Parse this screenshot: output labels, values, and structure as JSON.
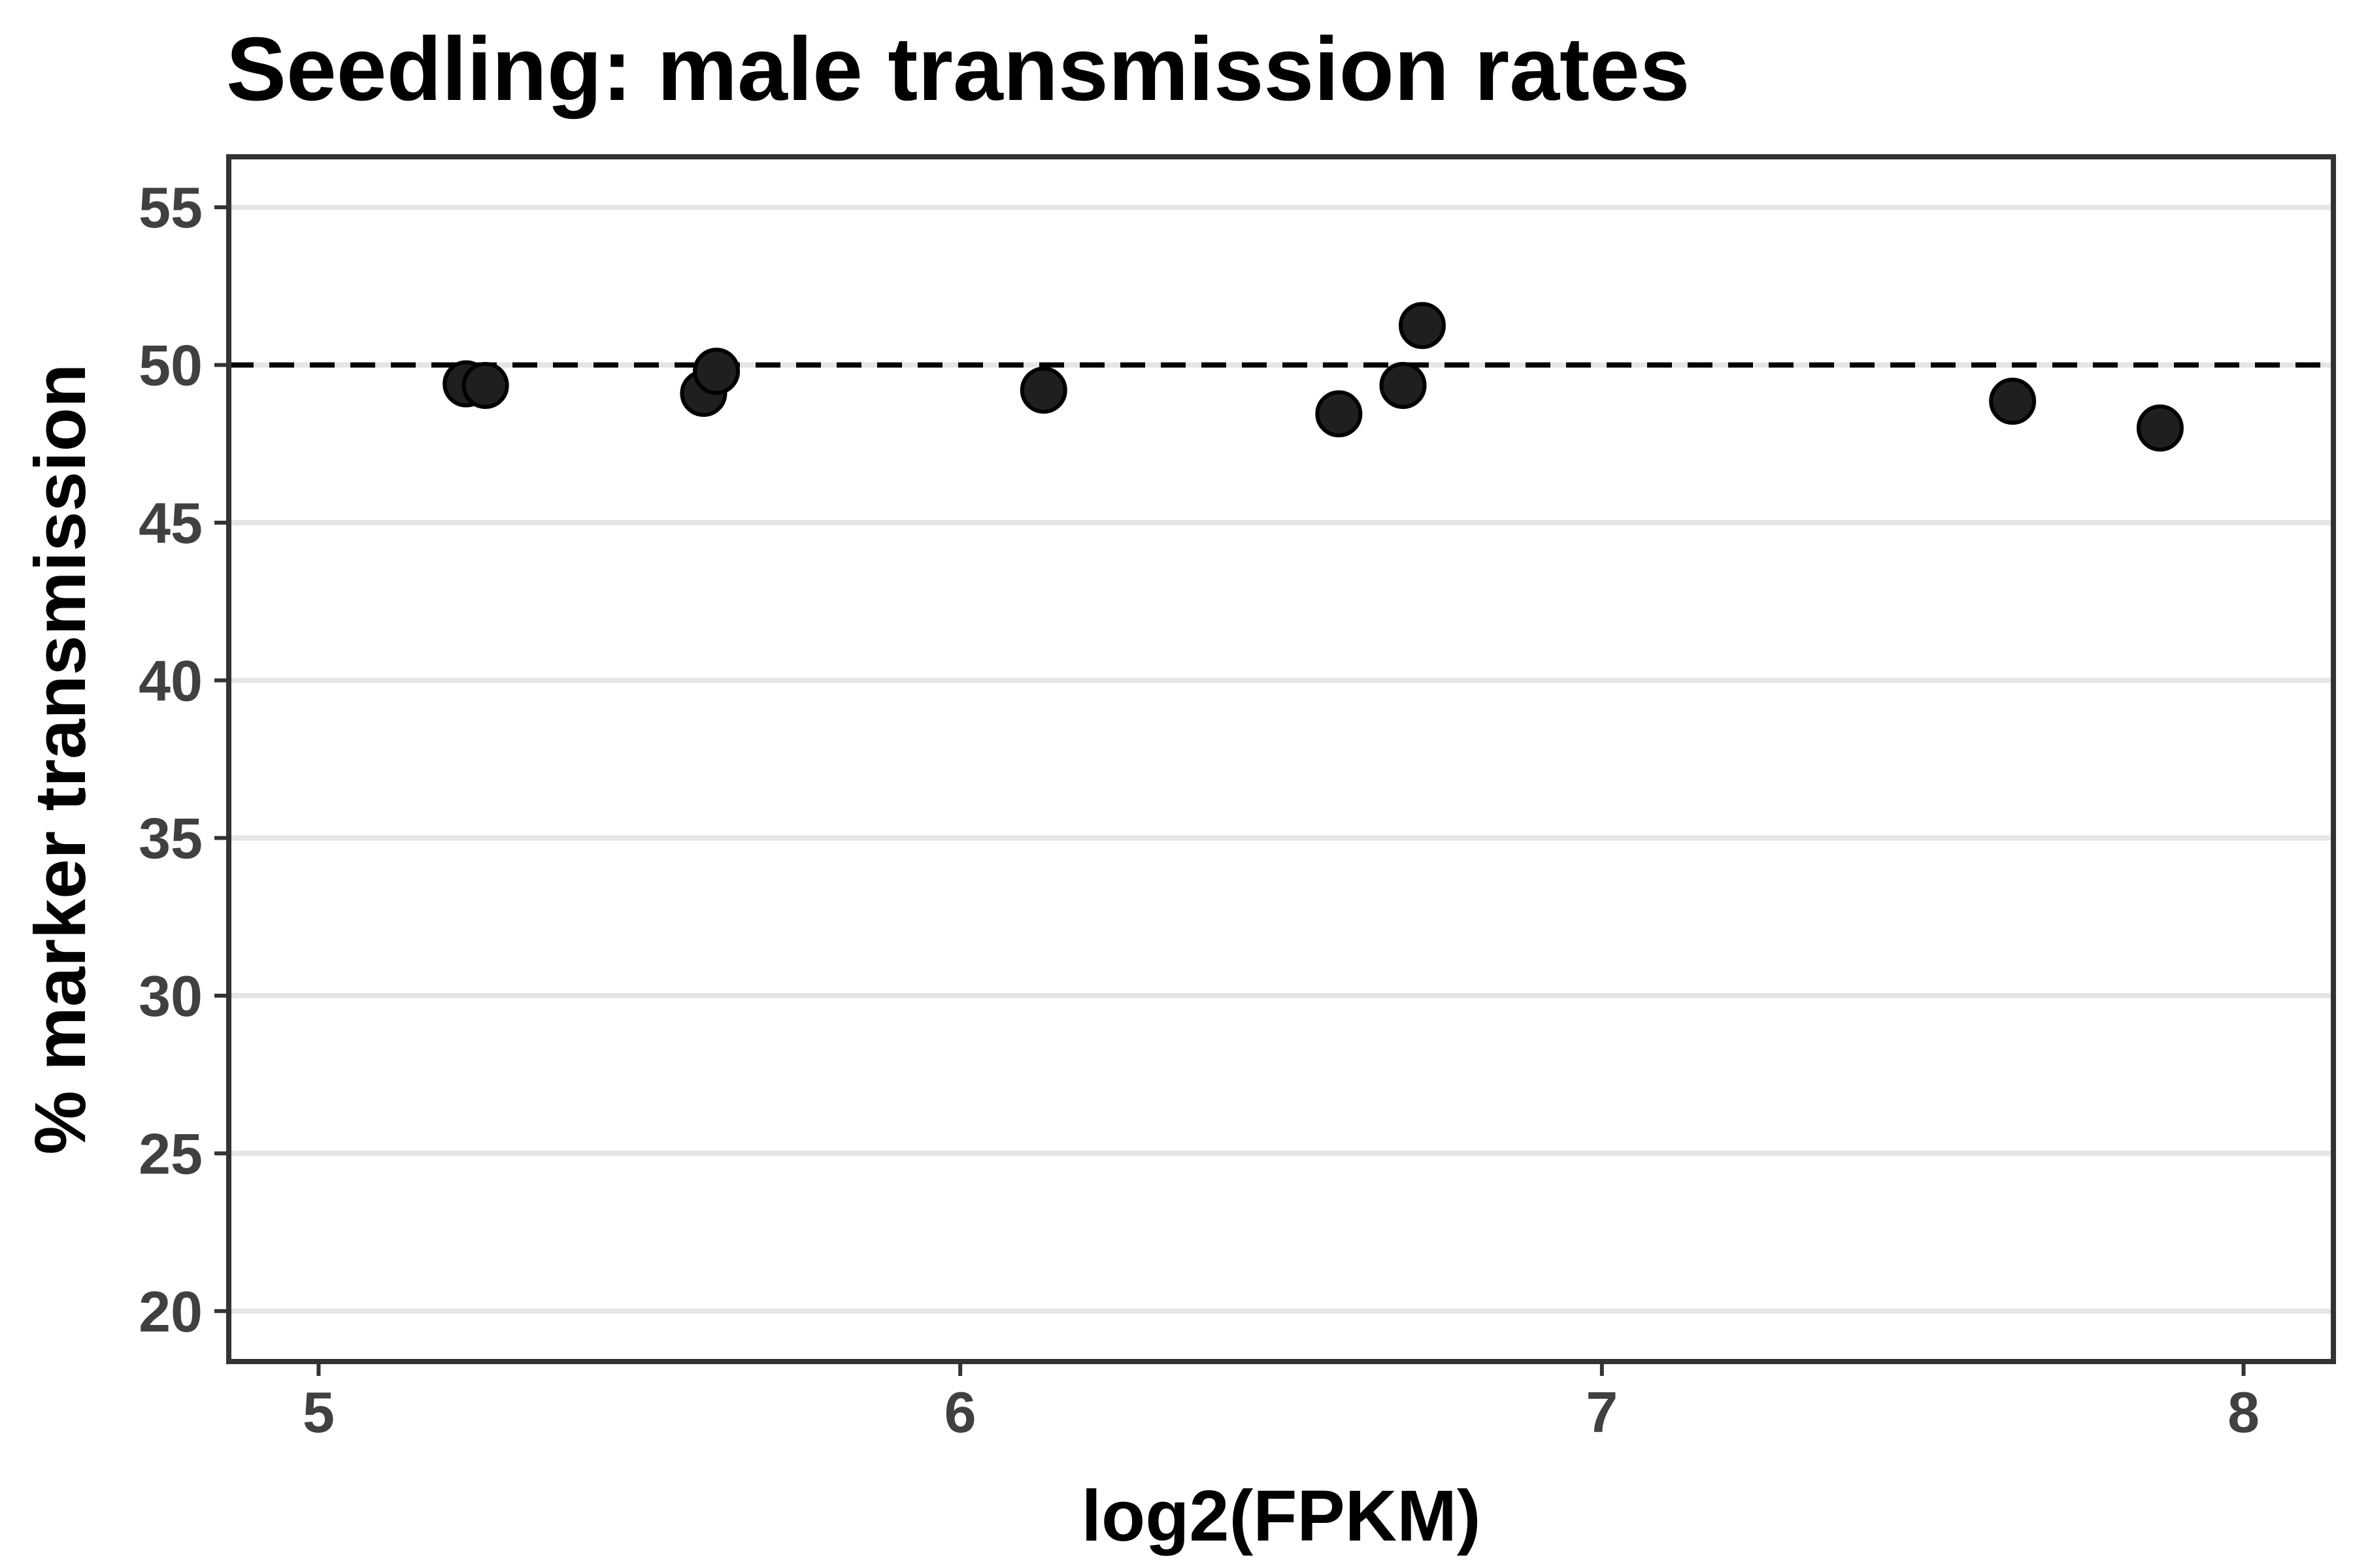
{
  "chart_data": {
    "type": "scatter",
    "title": "Seedling: male transmission rates",
    "xlabel": "log2(FPKM)",
    "ylabel": "% marker transmission",
    "xlim": [
      4.86,
      8.14
    ],
    "ylim": [
      18.4,
      56.6
    ],
    "xticks": [
      5,
      6,
      7,
      8
    ],
    "yticks": [
      20,
      25,
      30,
      35,
      40,
      45,
      50,
      55
    ],
    "grid": "horizontal major lines",
    "reference_line": {
      "y": 50,
      "style": "dashed"
    },
    "colors": {
      "point": "#1f1f1f",
      "grid": "#e5e5e5",
      "frame": "#333333",
      "reference": "#000000"
    },
    "series": [
      {
        "points": [
          {
            "x": 5.23,
            "y": 49.4
          },
          {
            "x": 5.26,
            "y": 49.35
          },
          {
            "x": 5.6,
            "y": 49.1
          },
          {
            "x": 5.62,
            "y": 49.8
          },
          {
            "x": 6.13,
            "y": 49.2
          },
          {
            "x": 6.59,
            "y": 48.45
          },
          {
            "x": 6.69,
            "y": 49.35
          },
          {
            "x": 6.72,
            "y": 51.25
          },
          {
            "x": 7.64,
            "y": 48.85
          },
          {
            "x": 7.87,
            "y": 48.0
          }
        ]
      }
    ]
  }
}
